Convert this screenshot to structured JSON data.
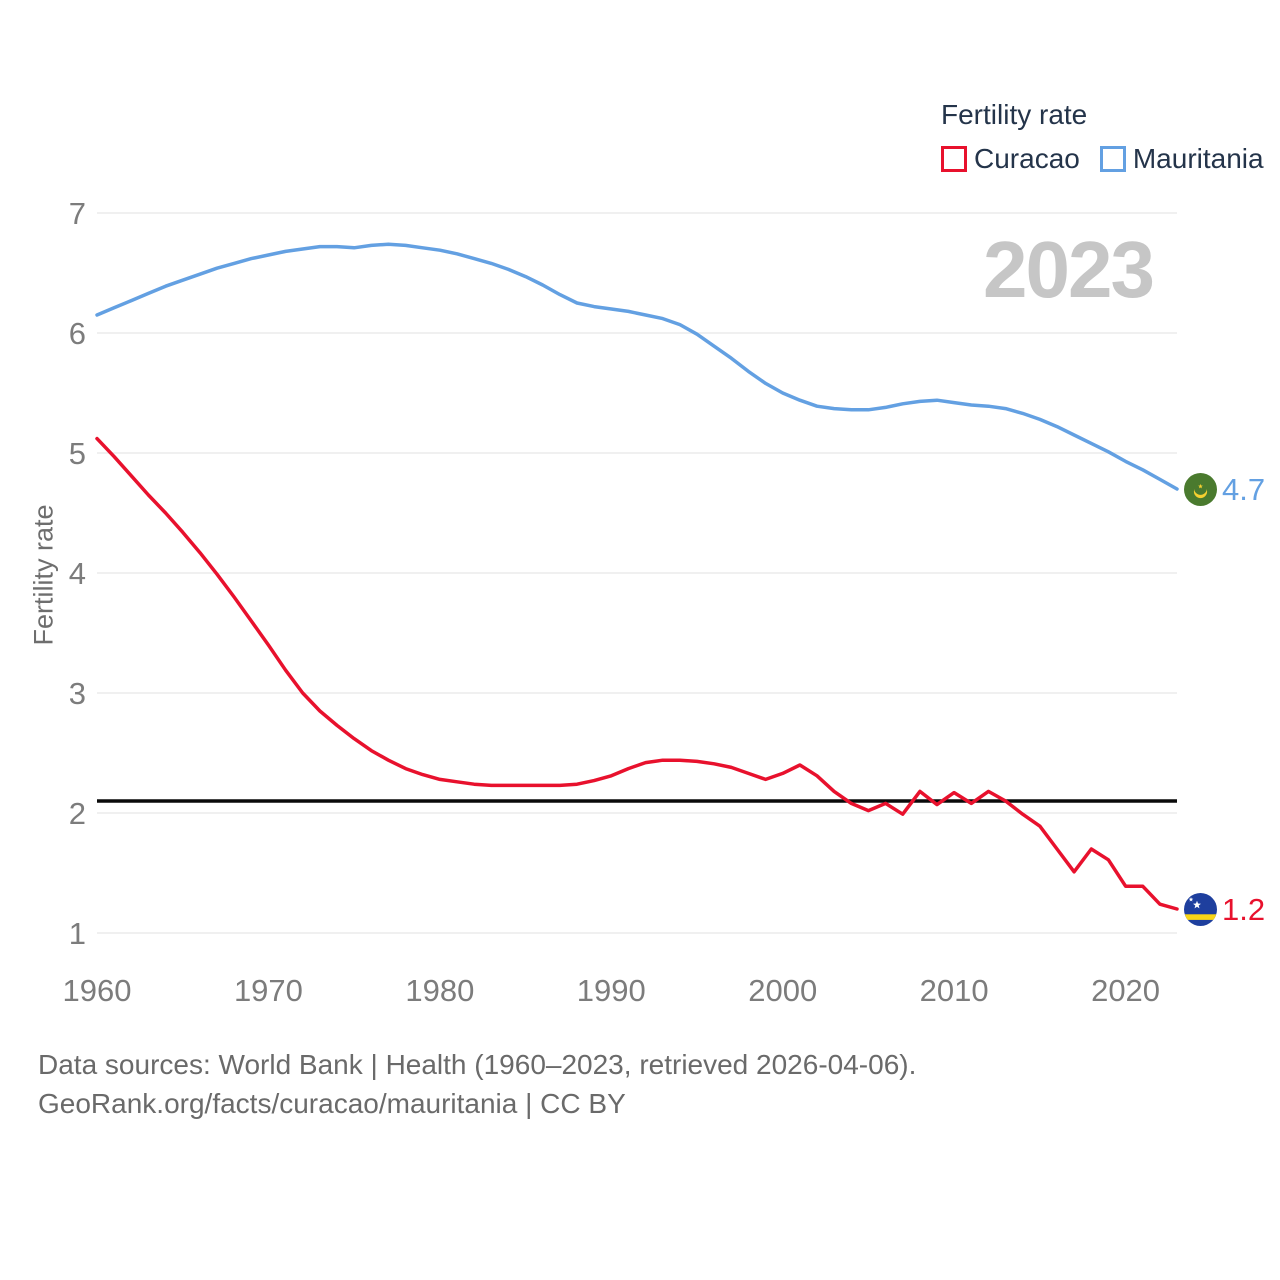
{
  "legend": {
    "title": "Fertility rate",
    "items": [
      {
        "label": "Curacao",
        "color": "#e8112d"
      },
      {
        "label": "Mauritania",
        "color": "#63a0e2"
      }
    ]
  },
  "watermark": "2023",
  "footer": {
    "line1": "Data sources: World Bank | Health (1960–2023, retrieved 2026-04-06).",
    "line2": "GeoRank.org/facts/curacao/mauritania | CC BY"
  },
  "flags": {
    "curacao": {
      "field": "#1e3f9e",
      "stripe": "#f9d616",
      "stars": "#ffffff"
    },
    "mauritania": {
      "field": "#4a7a2e",
      "crescent_star": "#f6d030"
    }
  },
  "chart_data": {
    "type": "line",
    "title": "Fertility rate",
    "ylabel": "Fertility rate",
    "xlabel": "",
    "xlim": [
      1960,
      2023
    ],
    "ylim": [
      1,
      7
    ],
    "yticks": [
      1,
      2,
      3,
      4,
      5,
      6,
      7
    ],
    "xticks": [
      1960,
      1970,
      1980,
      1990,
      2000,
      2010,
      2020
    ],
    "grid": "horizontal",
    "legend_position": "top-right",
    "gridline_color": "#ebebeb",
    "tick_color": "#7c7c7c",
    "reference_line": {
      "value": 2.1,
      "color": "#0a0a0a"
    },
    "years": [
      1960,
      1961,
      1962,
      1963,
      1964,
      1965,
      1966,
      1967,
      1968,
      1969,
      1970,
      1971,
      1972,
      1973,
      1974,
      1975,
      1976,
      1977,
      1978,
      1979,
      1980,
      1981,
      1982,
      1983,
      1984,
      1985,
      1986,
      1987,
      1988,
      1989,
      1990,
      1991,
      1992,
      1993,
      1994,
      1995,
      1996,
      1997,
      1998,
      1999,
      2000,
      2001,
      2002,
      2003,
      2004,
      2005,
      2006,
      2007,
      2008,
      2009,
      2010,
      2011,
      2012,
      2013,
      2014,
      2015,
      2016,
      2017,
      2018,
      2019,
      2020,
      2021,
      2022,
      2023
    ],
    "series": [
      {
        "name": "Curacao",
        "color": "#e8112d",
        "end_label": "1.2",
        "values": [
          5.12,
          4.97,
          4.81,
          4.65,
          4.5,
          4.34,
          4.17,
          3.99,
          3.8,
          3.6,
          3.4,
          3.19,
          3.0,
          2.85,
          2.73,
          2.62,
          2.52,
          2.44,
          2.37,
          2.32,
          2.28,
          2.26,
          2.24,
          2.23,
          2.23,
          2.23,
          2.23,
          2.23,
          2.24,
          2.27,
          2.31,
          2.37,
          2.42,
          2.44,
          2.44,
          2.43,
          2.41,
          2.38,
          2.33,
          2.28,
          2.33,
          2.4,
          2.31,
          2.18,
          2.08,
          2.02,
          2.08,
          1.99,
          2.18,
          2.07,
          2.17,
          2.08,
          2.18,
          2.1,
          1.99,
          1.89,
          1.7,
          1.51,
          1.7,
          1.61,
          1.39,
          1.39,
          1.24,
          1.2
        ]
      },
      {
        "name": "Mauritania",
        "color": "#63a0e2",
        "end_label": "4.7",
        "values": [
          6.15,
          6.21,
          6.27,
          6.33,
          6.39,
          6.44,
          6.49,
          6.54,
          6.58,
          6.62,
          6.65,
          6.68,
          6.7,
          6.72,
          6.72,
          6.71,
          6.73,
          6.74,
          6.73,
          6.71,
          6.69,
          6.66,
          6.62,
          6.58,
          6.53,
          6.47,
          6.4,
          6.32,
          6.25,
          6.22,
          6.2,
          6.18,
          6.15,
          6.12,
          6.07,
          5.99,
          5.89,
          5.79,
          5.68,
          5.58,
          5.5,
          5.44,
          5.39,
          5.37,
          5.36,
          5.36,
          5.38,
          5.41,
          5.43,
          5.44,
          5.42,
          5.4,
          5.39,
          5.37,
          5.33,
          5.28,
          5.22,
          5.15,
          5.08,
          5.01,
          4.93,
          4.86,
          4.78,
          4.7
        ]
      }
    ]
  }
}
